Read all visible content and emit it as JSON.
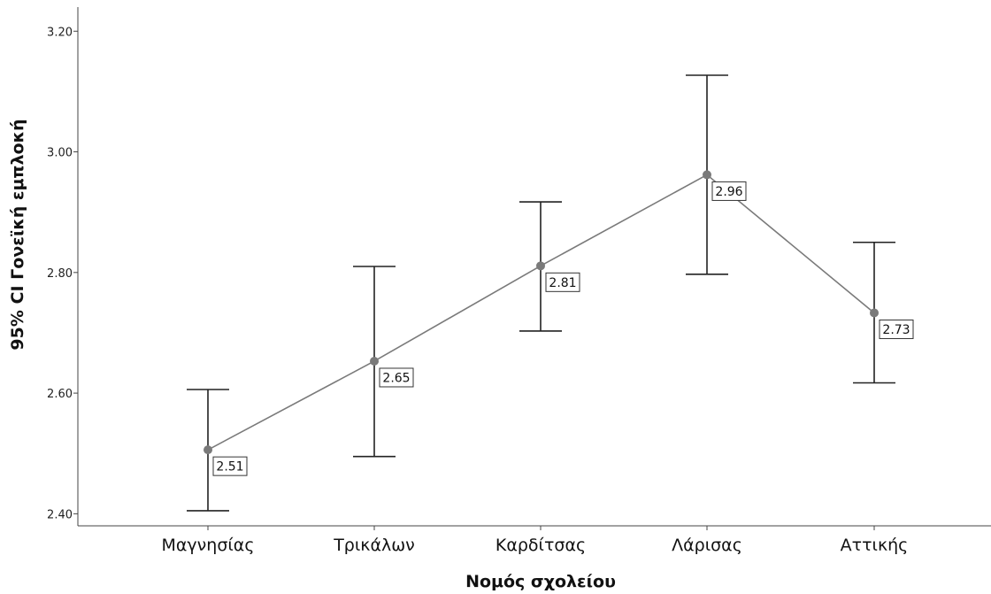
{
  "chart_data": {
    "type": "line",
    "title": "",
    "xlabel": "Νομός σχολείου",
    "ylabel": "95% CI Γονεϊκή εμπλοκή",
    "categories": [
      "Μαγνησίας",
      "Τρικάλων",
      "Καρδίτσας",
      "Λάρισας",
      "Αττικής"
    ],
    "series": [
      {
        "values": [
          2.506,
          2.653,
          2.811,
          2.962,
          2.733
        ],
        "ci_lower": [
          2.405,
          2.495,
          2.703,
          2.797,
          2.617
        ],
        "ci_upper": [
          2.606,
          2.81,
          2.917,
          3.127,
          2.85
        ],
        "labels": [
          "2.51",
          "2.65",
          "2.81",
          "2.96",
          "2.73"
        ]
      }
    ],
    "yticks": [
      "2.40",
      "2.60",
      "2.80",
      "3.00",
      "3.20"
    ],
    "ylim": [
      2.38,
      3.24
    ],
    "grid": false,
    "colors": {
      "line": "#7a7a7a",
      "marker": "#7a7a7a",
      "errorbar": "#222222",
      "axis": "#444444"
    }
  }
}
